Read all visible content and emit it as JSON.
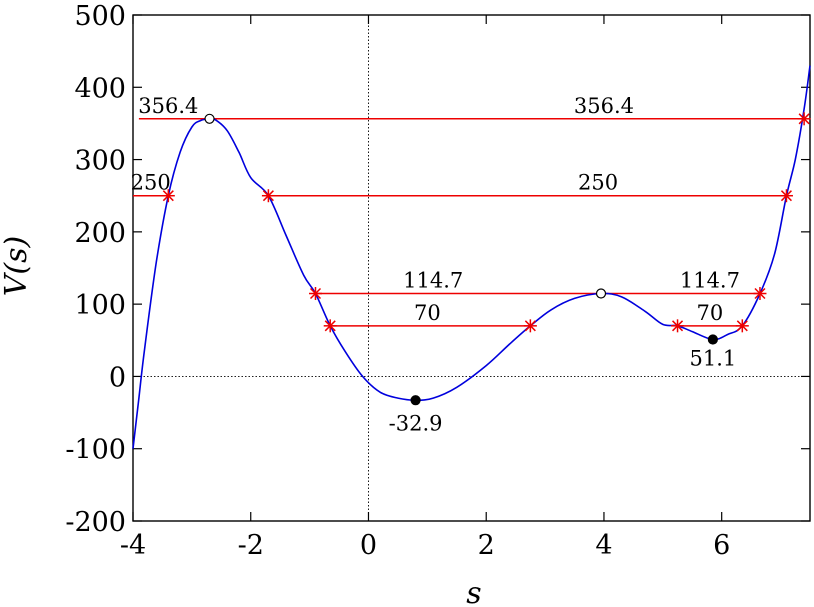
{
  "chart_data": {
    "type": "line",
    "title": "",
    "xlabel": "s",
    "ylabel": "V(s)",
    "xlim": [
      -4,
      7.5
    ],
    "ylim": [
      -200,
      500
    ],
    "x_ticks": [
      -4,
      -2,
      0,
      2,
      4,
      6
    ],
    "y_ticks": [
      -200,
      -100,
      0,
      100,
      200,
      300,
      400,
      500
    ],
    "grid": false,
    "zero_lines": true,
    "curve_color": "#0000dd",
    "level_color": "#ee0000",
    "curve": {
      "x": [
        -4.0,
        -3.9,
        -3.8,
        -3.6,
        -3.4,
        -3.2,
        -3.0,
        -2.85,
        -2.7,
        -2.6,
        -2.4,
        -2.2,
        -2.0,
        -1.7,
        -1.4,
        -1.1,
        -0.9,
        -0.65,
        -0.4,
        -0.1,
        0.2,
        0.5,
        0.8,
        1.1,
        1.5,
        2.0,
        2.4,
        2.75,
        3.1,
        3.5,
        3.95,
        4.3,
        4.7,
        5.0,
        5.25,
        5.5,
        5.85,
        6.1,
        6.35,
        6.65,
        6.9,
        7.1,
        7.25,
        7.4,
        7.5
      ],
      "y": [
        -100,
        -30,
        40,
        160,
        250,
        310,
        345,
        354,
        356,
        355,
        340,
        310,
        275,
        250,
        195,
        140,
        114.7,
        70,
        35,
        0,
        -22,
        -30,
        -32.9,
        -30,
        -15,
        15,
        45,
        70,
        92,
        108,
        114.7,
        110,
        90,
        72,
        70,
        62,
        51.1,
        58,
        70,
        114.7,
        170,
        250,
        300,
        370,
        430
      ]
    },
    "levels": [
      {
        "value": 356.4,
        "label": "356.4",
        "segments": [
          {
            "x1": -3.9,
            "x2": 7.4,
            "markers": [
              7.4
            ]
          }
        ],
        "label_positions": [
          -3.4,
          4.0
        ]
      },
      {
        "value": 250,
        "label": "250",
        "segments": [
          {
            "x1": -4.0,
            "x2": -3.4,
            "markers": [
              -3.4
            ]
          },
          {
            "x1": -1.7,
            "x2": 7.1,
            "markers": [
              -1.7,
              7.1
            ]
          }
        ],
        "label_positions": [
          -3.7,
          3.9
        ]
      },
      {
        "value": 114.7,
        "label": "114.7",
        "segments": [
          {
            "x1": -0.9,
            "x2": 6.65,
            "markers": [
              -0.9,
              6.65
            ]
          }
        ],
        "label_positions": [
          1.1,
          5.8
        ]
      },
      {
        "value": 70,
        "label": "70",
        "segments": [
          {
            "x1": -0.65,
            "x2": 2.75,
            "markers": [
              -0.65,
              2.75
            ]
          },
          {
            "x1": 5.25,
            "x2": 6.35,
            "markers": [
              5.25,
              6.35
            ]
          }
        ],
        "label_positions": [
          1.0,
          5.8
        ]
      }
    ],
    "extrema": [
      {
        "x": -2.7,
        "y": 356.4,
        "kind": "max",
        "label": ""
      },
      {
        "x": 3.95,
        "y": 114.7,
        "kind": "max",
        "label": ""
      },
      {
        "x": 0.8,
        "y": -32.9,
        "kind": "min",
        "label": "-32.9",
        "label_x": 0.8,
        "label_y": -75
      },
      {
        "x": 5.85,
        "y": 51.1,
        "kind": "min",
        "label": "51.1",
        "label_x": 5.85,
        "label_y": 15
      }
    ]
  }
}
